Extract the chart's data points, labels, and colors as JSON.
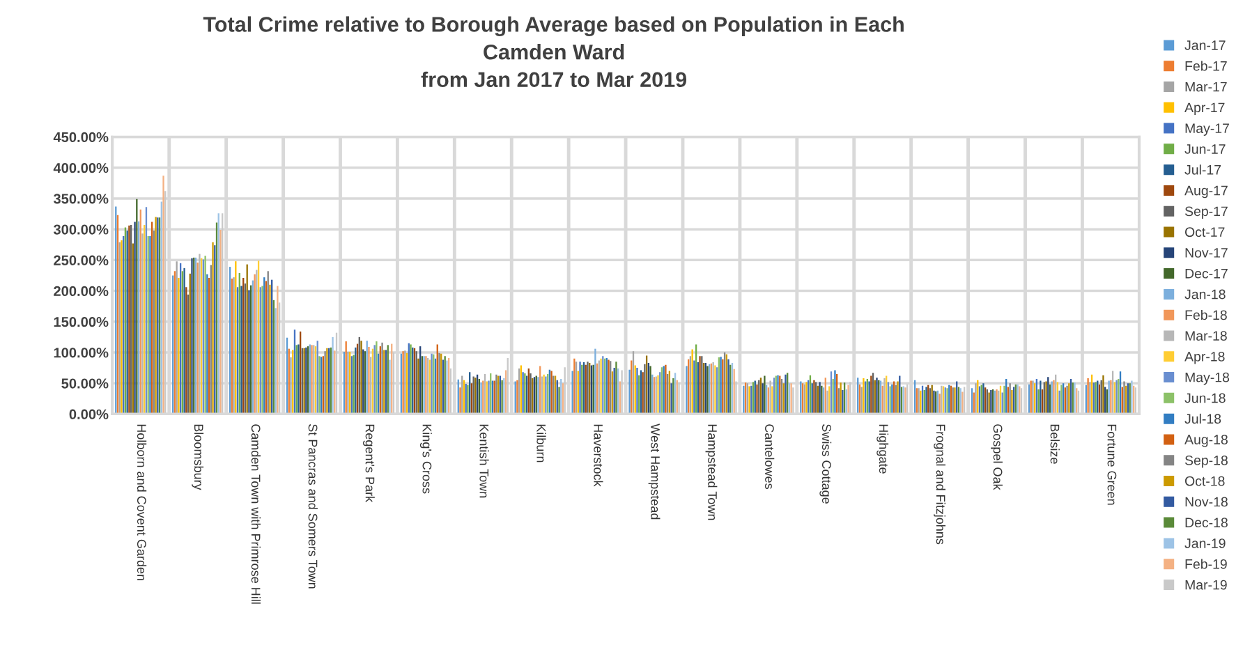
{
  "chart_data": {
    "type": "bar",
    "title": "Total Crime relative to Borough Average based on Population in Each\nCamden Ward\nfrom Jan 2017 to Mar 2019",
    "categories": [
      "Holborn and Covent Garden",
      "Bloomsbury",
      "Camden Town with Primrose Hill",
      "St Pancras and Somers Town",
      "Regent's Park",
      "King's Cross",
      "Kentish Town",
      "Kilburn",
      "Haverstock",
      "West Hampstead",
      "Hampstead Town",
      "Cantelowes",
      "Swiss Cottage",
      "Highgate",
      "Frognal and Fitzjohns",
      "Gospel Oak",
      "Belsize",
      "Fortune Green"
    ],
    "ylim": [
      0,
      450
    ],
    "yticks": [
      {
        "value": 0,
        "label": "0.00%"
      },
      {
        "value": 50,
        "label": "50.00%"
      },
      {
        "value": 100,
        "label": "100.00%"
      },
      {
        "value": 150,
        "label": "150.00%"
      },
      {
        "value": 200,
        "label": "200.00%"
      },
      {
        "value": 250,
        "label": "250.00%"
      },
      {
        "value": 300,
        "label": "300.00%"
      },
      {
        "value": 350,
        "label": "350.00%"
      },
      {
        "value": 400,
        "label": "400.00%"
      },
      {
        "value": 450,
        "label": "450.00%"
      }
    ],
    "grid": true,
    "legend": "right",
    "series": [
      {
        "name": "Jan-17",
        "color": "#5b9bd5",
        "values": [
          337,
          225,
          239,
          124,
          101,
          98,
          56,
          53,
          70,
          72,
          78,
          46,
          53,
          59,
          55,
          42,
          48,
          47
        ]
      },
      {
        "name": "Feb-17",
        "color": "#ed7d31",
        "values": [
          323,
          232,
          220,
          106,
          118,
          102,
          43,
          55,
          90,
          87,
          89,
          51,
          50,
          48,
          42,
          35,
          54,
          58
        ]
      },
      {
        "name": "Mar-17",
        "color": "#a5a5a5",
        "values": [
          279,
          248,
          222,
          92,
          101,
          103,
          62,
          74,
          85,
          102,
          94,
          50,
          48,
          44,
          42,
          50,
          54,
          52
        ]
      },
      {
        "name": "Apr-17",
        "color": "#ffc000",
        "values": [
          282,
          221,
          248,
          104,
          101,
          99,
          55,
          79,
          70,
          79,
          105,
          45,
          52,
          58,
          38,
          55,
          50,
          64
        ]
      },
      {
        "name": "May-17",
        "color": "#4472c4",
        "values": [
          289,
          245,
          206,
          137,
          94,
          115,
          49,
          68,
          85,
          75,
          87,
          46,
          55,
          53,
          46,
          45,
          57,
          51
        ]
      },
      {
        "name": "Jun-17",
        "color": "#70ad47",
        "values": [
          303,
          232,
          229,
          112,
          96,
          113,
          47,
          66,
          80,
          63,
          113,
          52,
          63,
          57,
          39,
          47,
          40,
          52
        ]
      },
      {
        "name": "Jul-17",
        "color": "#255e91",
        "values": [
          298,
          237,
          208,
          113,
          108,
          108,
          68,
          62,
          84,
          71,
          84,
          54,
          50,
          53,
          44,
          50,
          54,
          54
        ]
      },
      {
        "name": "Aug-17",
        "color": "#9e480e",
        "values": [
          306,
          206,
          221,
          134,
          114,
          107,
          50,
          74,
          80,
          68,
          94,
          48,
          55,
          62,
          47,
          43,
          40,
          48
        ]
      },
      {
        "name": "Sep-17",
        "color": "#636363",
        "values": [
          307,
          194,
          212,
          107,
          125,
          102,
          61,
          66,
          85,
          81,
          94,
          55,
          52,
          67,
          42,
          40,
          52,
          55
        ]
      },
      {
        "name": "Oct-17",
        "color": "#997300",
        "values": [
          277,
          228,
          243,
          107,
          119,
          90,
          59,
          58,
          83,
          95,
          83,
          59,
          46,
          55,
          47,
          35,
          53,
          63
        ]
      },
      {
        "name": "Nov-17",
        "color": "#264478",
        "values": [
          312,
          253,
          201,
          108,
          105,
          110,
          64,
          60,
          79,
          83,
          83,
          50,
          52,
          59,
          38,
          39,
          60,
          44
        ]
      },
      {
        "name": "Dec-17",
        "color": "#43682b",
        "values": [
          349,
          254,
          209,
          110,
          102,
          94,
          57,
          62,
          80,
          78,
          78,
          62,
          46,
          55,
          37,
          40,
          48,
          40
        ]
      },
      {
        "name": "Jan-18",
        "color": "#7cafdd",
        "values": [
          313,
          254,
          217,
          113,
          119,
          94,
          51,
          60,
          106,
          64,
          81,
          47,
          43,
          54,
          38,
          38,
          53,
          54
        ]
      },
      {
        "name": "Feb-18",
        "color": "#f1975a",
        "values": [
          332,
          246,
          227,
          112,
          109,
          94,
          54,
          78,
          82,
          60,
          82,
          43,
          59,
          46,
          33,
          40,
          55,
          55
        ]
      },
      {
        "name": "Mar-18",
        "color": "#b7b7b7",
        "values": [
          293,
          260,
          234,
          112,
          93,
          91,
          65,
          61,
          87,
          61,
          84,
          54,
          38,
          58,
          46,
          38,
          64,
          70
        ]
      },
      {
        "name": "Apr-18",
        "color": "#ffcd33",
        "values": [
          307,
          253,
          249,
          110,
          106,
          88,
          53,
          64,
          90,
          63,
          79,
          45,
          45,
          62,
          45,
          46,
          52,
          52
        ]
      },
      {
        "name": "May-18",
        "color": "#698ed0",
        "values": [
          336,
          251,
          206,
          119,
          112,
          98,
          54,
          61,
          94,
          68,
          76,
          59,
          69,
          52,
          43,
          35,
          38,
          55
        ]
      },
      {
        "name": "Jun-18",
        "color": "#8cc168",
        "values": [
          289,
          257,
          208,
          94,
          118,
          97,
          66,
          65,
          90,
          76,
          92,
          62,
          57,
          45,
          42,
          46,
          47,
          57
        ]
      },
      {
        "name": "Jul-18",
        "color": "#327dc2",
        "values": [
          289,
          227,
          222,
          93,
          98,
          90,
          54,
          72,
          91,
          78,
          93,
          63,
          71,
          48,
          47,
          57,
          50,
          69
        ]
      },
      {
        "name": "Aug-18",
        "color": "#d26012",
        "values": [
          312,
          221,
          216,
          94,
          110,
          113,
          54,
          70,
          88,
          80,
          89,
          62,
          65,
          53,
          46,
          44,
          43,
          44
        ]
      },
      {
        "name": "Sep-18",
        "color": "#848484",
        "values": [
          298,
          242,
          232,
          102,
          116,
          99,
          64,
          62,
          86,
          65,
          100,
          57,
          42,
          47,
          43,
          50,
          46,
          53
        ]
      },
      {
        "name": "Oct-18",
        "color": "#cc9a00",
        "values": [
          320,
          279,
          210,
          107,
          104,
          98,
          62,
          62,
          69,
          70,
          97,
          50,
          51,
          53,
          43,
          39,
          50,
          46
        ]
      },
      {
        "name": "Nov-18",
        "color": "#335aa1",
        "values": [
          319,
          274,
          218,
          107,
          104,
          88,
          62,
          55,
          75,
          50,
          89,
          64,
          39,
          62,
          53,
          44,
          57,
          50
        ]
      },
      {
        "name": "Dec-18",
        "color": "#5a8a39",
        "values": [
          319,
          311,
          185,
          108,
          112,
          94,
          55,
          44,
          85,
          58,
          80,
          67,
          51,
          44,
          44,
          48,
          51,
          50
        ]
      },
      {
        "name": "Jan-19",
        "color": "#9dc3e6",
        "values": [
          345,
          326,
          172,
          125,
          88,
          87,
          58,
          57,
          74,
          67,
          83,
          50,
          40,
          45,
          42,
          48,
          51,
          54
        ]
      },
      {
        "name": "Feb-19",
        "color": "#f4b183",
        "values": [
          387,
          299,
          208,
          103,
          114,
          91,
          71,
          50,
          53,
          55,
          73,
          50,
          47,
          43,
          36,
          45,
          42,
          46
        ]
      },
      {
        "name": "Mar-19",
        "color": "#c9c9c9",
        "values": [
          362,
          326,
          181,
          132,
          100,
          74,
          91,
          76,
          71,
          51,
          53,
          43,
          52,
          48,
          44,
          42,
          38,
          43
        ]
      }
    ]
  }
}
